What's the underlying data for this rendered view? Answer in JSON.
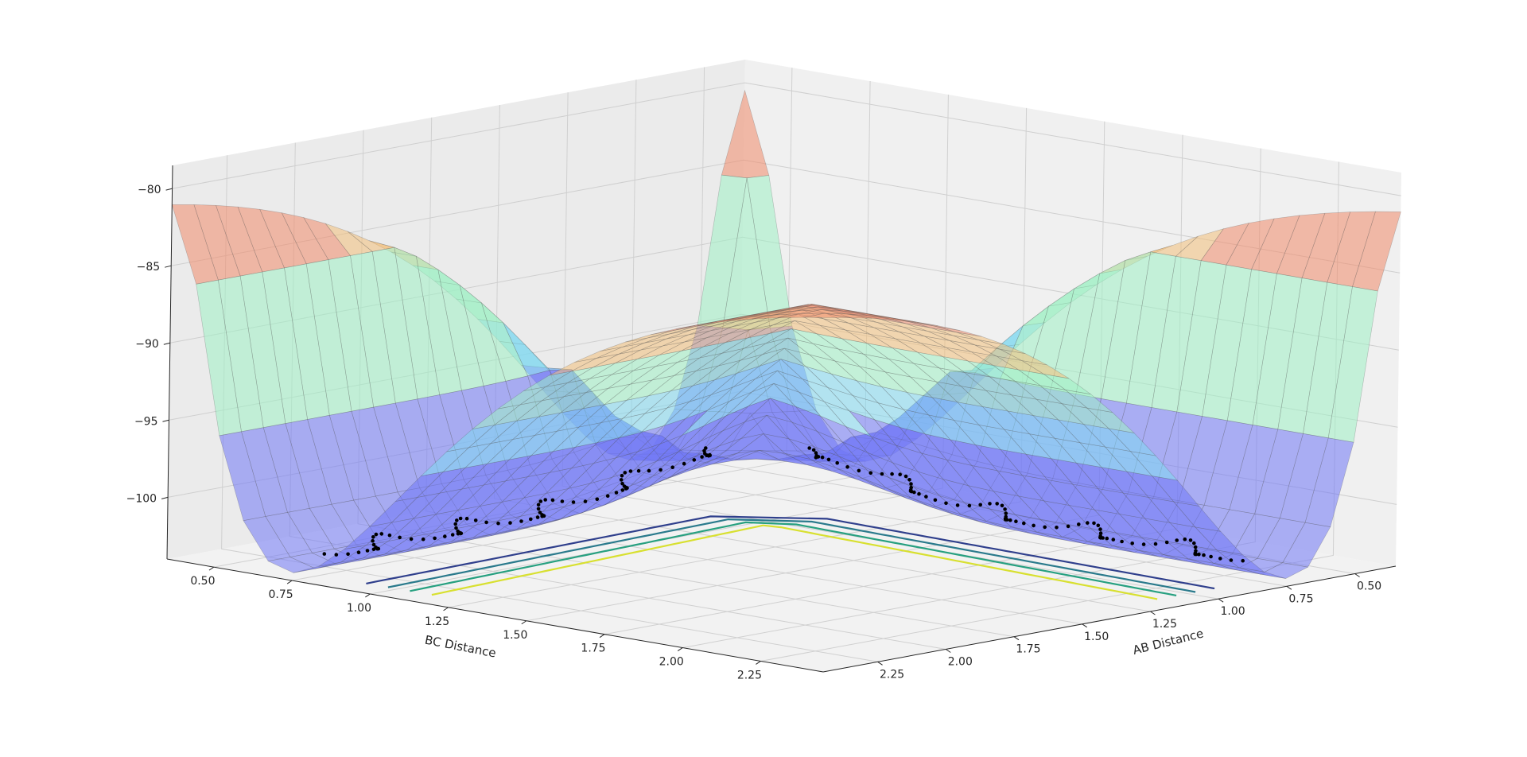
{
  "chart_data": {
    "type": "surface3d",
    "title": "",
    "xlabel": "AB Distance",
    "ylabel": "BC Distance",
    "zlabel": "",
    "x_ticks": [
      "0.50",
      "0.75",
      "1.00",
      "1.25",
      "1.50",
      "1.75",
      "2.00",
      "2.25"
    ],
    "y_ticks": [
      "0.50",
      "0.75",
      "1.00",
      "1.25",
      "1.50",
      "1.75",
      "2.00",
      "2.25"
    ],
    "z_ticks": [
      "−80",
      "−85",
      "−90",
      "−95",
      "−100"
    ],
    "z_values": [
      -80,
      -85,
      -90,
      -95,
      -100
    ],
    "xlim": [
      0.35,
      2.45
    ],
    "ylim": [
      0.35,
      2.45
    ],
    "zlim": [
      -104,
      -78.5
    ],
    "grid": true,
    "surface_bands": [
      {
        "z_range": [
          -104,
          -96
        ],
        "color": "#6f76f5"
      },
      {
        "z_range": [
          -96,
          -92
        ],
        "color": "#7fd8f0"
      },
      {
        "z_range": [
          -92,
          -88
        ],
        "color": "#9ff0c5"
      },
      {
        "z_range": [
          -88,
          -84
        ],
        "color": "#f3c07a"
      },
      {
        "z_range": [
          -84,
          -80
        ],
        "color": "#f08a6a"
      },
      {
        "z_range": [
          -80,
          -78.5
        ],
        "color": "#c84a3a"
      }
    ],
    "contour_colors": [
      "#2f3f8c",
      "#2a7a8c",
      "#27a080",
      "#d8e030"
    ],
    "trajectory_color": "#000000"
  }
}
